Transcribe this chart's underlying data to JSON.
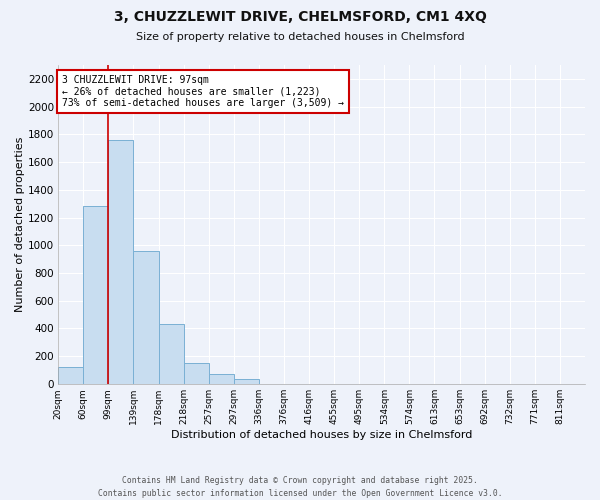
{
  "title_line1": "3, CHUZZLEWIT DRIVE, CHELMSFORD, CM1 4XQ",
  "title_line2": "Size of property relative to detached houses in Chelmsford",
  "xlabel": "Distribution of detached houses by size in Chelmsford",
  "ylabel": "Number of detached properties",
  "bar_color": "#c8ddf0",
  "bar_edge_color": "#7ab0d4",
  "annotation_line_color": "#cc0000",
  "background_color": "#eef2fa",
  "grid_color": "#ffffff",
  "tick_labels": [
    "20sqm",
    "60sqm",
    "99sqm",
    "139sqm",
    "178sqm",
    "218sqm",
    "257sqm",
    "297sqm",
    "336sqm",
    "376sqm",
    "416sqm",
    "455sqm",
    "495sqm",
    "534sqm",
    "574sqm",
    "613sqm",
    "653sqm",
    "692sqm",
    "732sqm",
    "771sqm",
    "811sqm"
  ],
  "bar_values": [
    120,
    1280,
    1760,
    960,
    430,
    150,
    75,
    35,
    0,
    0,
    0,
    0,
    0,
    0,
    0,
    0,
    0,
    0,
    0,
    0
  ],
  "ylim": [
    0,
    2300
  ],
  "yticks": [
    0,
    200,
    400,
    600,
    800,
    1000,
    1200,
    1400,
    1600,
    1800,
    2000,
    2200
  ],
  "annot_line1": "3 CHUZZLEWIT DRIVE: 97sqm",
  "annot_line2": "← 26% of detached houses are smaller (1,223)",
  "annot_line3": "73% of semi-detached houses are larger (3,509) →",
  "vline_x_index": 2,
  "footer_line1": "Contains HM Land Registry data © Crown copyright and database right 2025.",
  "footer_line2": "Contains public sector information licensed under the Open Government Licence v3.0."
}
